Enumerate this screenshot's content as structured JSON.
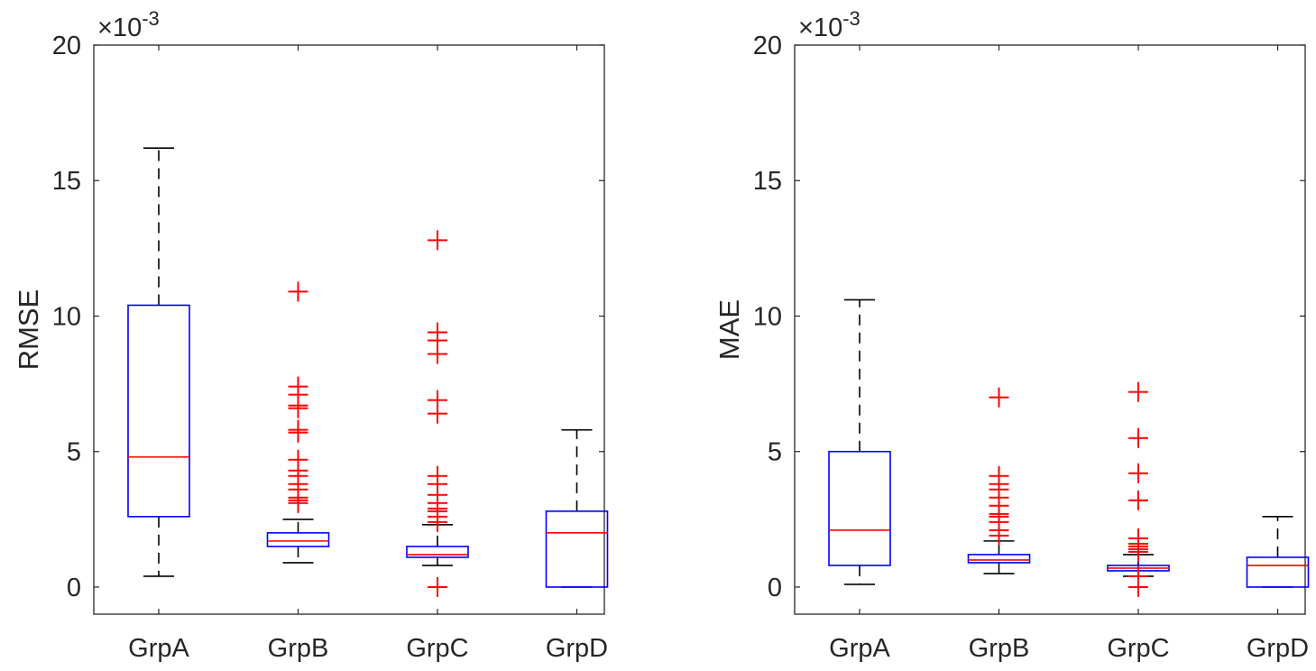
{
  "chart_data": [
    {
      "type": "box",
      "ylabel": "RMSE",
      "exponent_label": "×10",
      "exponent_power": "-3",
      "ylim": [
        -0.001,
        0.02
      ],
      "yticks": [
        0,
        0.005,
        0.01,
        0.015,
        0.02
      ],
      "ytick_labels": [
        "0",
        "5",
        "10",
        "15",
        "20"
      ],
      "categories": [
        "GrpA",
        "GrpB",
        "GrpC",
        "GrpD"
      ],
      "boxes": [
        {
          "name": "GrpA",
          "whisker_low": 0.0004,
          "q1": 0.0026,
          "median": 0.0048,
          "q3": 0.0104,
          "whisker_high": 0.0162,
          "outliers": []
        },
        {
          "name": "GrpB",
          "whisker_low": 0.0009,
          "q1": 0.0015,
          "median": 0.0017,
          "q3": 0.002,
          "whisker_high": 0.0025,
          "outliers": [
            0.0031,
            0.0032,
            0.0033,
            0.0036,
            0.0038,
            0.0041,
            0.0043,
            0.0047,
            0.0057,
            0.0058,
            0.0066,
            0.0067,
            0.0071,
            0.0074,
            0.0109
          ]
        },
        {
          "name": "GrpC",
          "whisker_low": 0.0008,
          "q1": 0.0011,
          "median": 0.0012,
          "q3": 0.0015,
          "whisker_high": 0.0023,
          "outliers": [
            0.0,
            0.0024,
            0.0026,
            0.0028,
            0.0029,
            0.0031,
            0.0034,
            0.0038,
            0.0041,
            0.0064,
            0.0069,
            0.0086,
            0.0091,
            0.0094,
            0.0128
          ]
        },
        {
          "name": "GrpD",
          "whisker_low": 0.0,
          "q1": 0.0,
          "median": 0.002,
          "q3": 0.0028,
          "whisker_high": 0.0058,
          "outliers": []
        }
      ]
    },
    {
      "type": "box",
      "ylabel": "MAE",
      "exponent_label": "×10",
      "exponent_power": "-3",
      "ylim": [
        -0.001,
        0.02
      ],
      "yticks": [
        0,
        0.005,
        0.01,
        0.015,
        0.02
      ],
      "ytick_labels": [
        "0",
        "5",
        "10",
        "15",
        "20"
      ],
      "categories": [
        "GrpA",
        "GrpB",
        "GrpC",
        "GrpD"
      ],
      "boxes": [
        {
          "name": "GrpA",
          "whisker_low": 0.0001,
          "q1": 0.0008,
          "median": 0.0021,
          "q3": 0.005,
          "whisker_high": 0.0106,
          "outliers": []
        },
        {
          "name": "GrpB",
          "whisker_low": 0.0005,
          "q1": 0.0009,
          "median": 0.001,
          "q3": 0.0012,
          "whisker_high": 0.0017,
          "outliers": [
            0.0019,
            0.0021,
            0.0024,
            0.0026,
            0.0027,
            0.003,
            0.0033,
            0.0036,
            0.0038,
            0.0041,
            0.007
          ]
        },
        {
          "name": "GrpC",
          "whisker_low": 0.0004,
          "q1": 0.0006,
          "median": 0.0007,
          "q3": 0.0008,
          "whisker_high": 0.0012,
          "outliers": [
            0.0,
            0.0004,
            0.0013,
            0.0014,
            0.0015,
            0.0016,
            0.0018,
            0.0032,
            0.0042,
            0.0055,
            0.0072
          ]
        },
        {
          "name": "GrpD",
          "whisker_low": 0.0,
          "q1": 0.0,
          "median": 0.0008,
          "q3": 0.0011,
          "whisker_high": 0.0026,
          "outliers": []
        }
      ]
    }
  ],
  "colors": {
    "box": "#0000ff",
    "median": "#ff0000",
    "whisker": "#000000",
    "outlier": "#ff0000",
    "axis": "#262626"
  }
}
